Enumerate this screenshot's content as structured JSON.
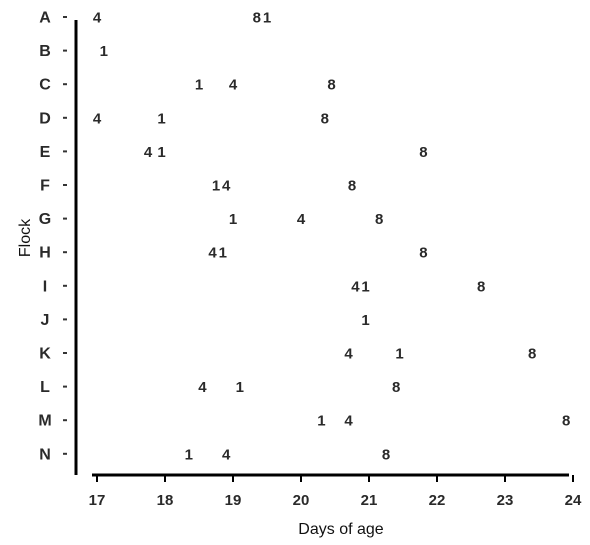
{
  "chart_data": {
    "type": "scatter",
    "title": "",
    "xlabel": "Days of age",
    "ylabel": "Flock",
    "xlim": [
      17,
      24
    ],
    "x_ticks": [
      "17",
      "18",
      "19",
      "20",
      "21",
      "22",
      "23",
      "24"
    ],
    "categories": [
      "A",
      "B",
      "C",
      "D",
      "E",
      "F",
      "G",
      "H",
      "I",
      "J",
      "K",
      "L",
      "M",
      "N"
    ],
    "grid": false,
    "legend": "none",
    "points": [
      {
        "flock": "A",
        "x": 17.0,
        "label": "4"
      },
      {
        "flock": "A",
        "x": 19.35,
        "label": "8"
      },
      {
        "flock": "A",
        "x": 19.5,
        "label": "1"
      },
      {
        "flock": "B",
        "x": 17.1,
        "label": "1"
      },
      {
        "flock": "C",
        "x": 18.5,
        "label": "1"
      },
      {
        "flock": "C",
        "x": 19.0,
        "label": "4"
      },
      {
        "flock": "C",
        "x": 20.45,
        "label": "8"
      },
      {
        "flock": "D",
        "x": 17.0,
        "label": "4"
      },
      {
        "flock": "D",
        "x": 17.95,
        "label": "1"
      },
      {
        "flock": "D",
        "x": 20.35,
        "label": "8"
      },
      {
        "flock": "E",
        "x": 17.75,
        "label": "4"
      },
      {
        "flock": "E",
        "x": 17.95,
        "label": "1"
      },
      {
        "flock": "E",
        "x": 21.8,
        "label": "8"
      },
      {
        "flock": "F",
        "x": 18.75,
        "label": "1"
      },
      {
        "flock": "F",
        "x": 18.9,
        "label": "4"
      },
      {
        "flock": "F",
        "x": 20.75,
        "label": "8"
      },
      {
        "flock": "G",
        "x": 19.0,
        "label": "1"
      },
      {
        "flock": "G",
        "x": 20.0,
        "label": "4"
      },
      {
        "flock": "G",
        "x": 21.15,
        "label": "8"
      },
      {
        "flock": "H",
        "x": 18.7,
        "label": "4"
      },
      {
        "flock": "H",
        "x": 18.85,
        "label": "1"
      },
      {
        "flock": "H",
        "x": 21.8,
        "label": "8"
      },
      {
        "flock": "I",
        "x": 20.8,
        "label": "4"
      },
      {
        "flock": "I",
        "x": 20.95,
        "label": "1"
      },
      {
        "flock": "I",
        "x": 22.65,
        "label": "8"
      },
      {
        "flock": "J",
        "x": 20.95,
        "label": "1"
      },
      {
        "flock": "K",
        "x": 20.7,
        "label": "4"
      },
      {
        "flock": "K",
        "x": 21.45,
        "label": "1"
      },
      {
        "flock": "K",
        "x": 23.4,
        "label": "8"
      },
      {
        "flock": "L",
        "x": 18.55,
        "label": "4"
      },
      {
        "flock": "L",
        "x": 19.1,
        "label": "1"
      },
      {
        "flock": "L",
        "x": 21.4,
        "label": "8"
      },
      {
        "flock": "M",
        "x": 20.3,
        "label": "1"
      },
      {
        "flock": "M",
        "x": 20.7,
        "label": "4"
      },
      {
        "flock": "M",
        "x": 23.9,
        "label": "8"
      },
      {
        "flock": "N",
        "x": 18.35,
        "label": "1"
      },
      {
        "flock": "N",
        "x": 18.9,
        "label": "4"
      },
      {
        "flock": "N",
        "x": 21.25,
        "label": "8"
      }
    ]
  }
}
